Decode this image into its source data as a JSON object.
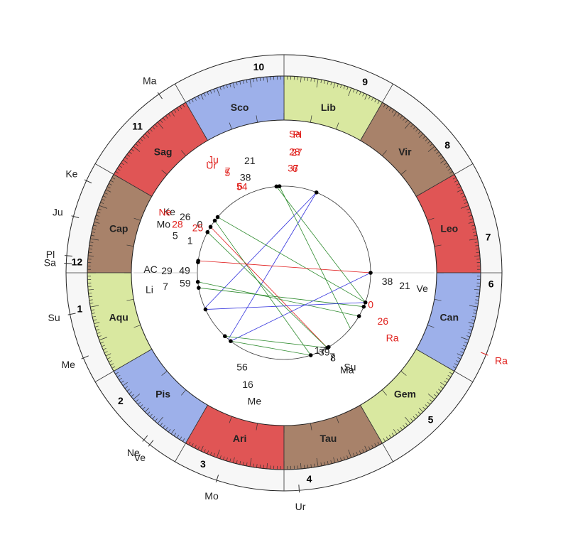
{
  "colors": {
    "red": "#e05555",
    "brown": "#a8826a",
    "green": "#d9e8a0",
    "blue": "#9db0ea",
    "outer_ring": "#f7f7f7",
    "transit_text": "#e0211d",
    "aspect_blue": "#3333dd",
    "aspect_green": "#2e8b2e",
    "aspect_red": "#e01818"
  },
  "houses": [
    {
      "num": "1",
      "angle": 190
    },
    {
      "num": "2",
      "angle": 218
    },
    {
      "num": "3",
      "angle": 247
    },
    {
      "num": "4",
      "angle": 277
    },
    {
      "num": "5",
      "angle": 315
    },
    {
      "num": "6",
      "angle": 357
    },
    {
      "num": "7",
      "angle": 10
    },
    {
      "num": "8",
      "angle": 38
    },
    {
      "num": "9",
      "angle": 67
    },
    {
      "num": "10",
      "angle": 97
    },
    {
      "num": "11",
      "angle": 135
    },
    {
      "num": "12",
      "angle": 177
    }
  ],
  "signs": [
    {
      "label": "Leo",
      "color": "red"
    },
    {
      "label": "Vir",
      "color": "brown"
    },
    {
      "label": "Lib",
      "color": "green"
    },
    {
      "label": "Sco",
      "color": "blue"
    },
    {
      "label": "Sag",
      "color": "red"
    },
    {
      "label": "Cap",
      "color": "brown"
    },
    {
      "label": "Aqu",
      "color": "green"
    },
    {
      "label": "Pis",
      "color": "blue"
    },
    {
      "label": "Ari",
      "color": "red"
    },
    {
      "label": "Tau",
      "color": "brown"
    },
    {
      "label": "Gem",
      "color": "green"
    },
    {
      "label": "Can",
      "color": "blue"
    }
  ],
  "outer_planets": [
    {
      "label": "Ma",
      "angle": 125
    },
    {
      "label": "Ke",
      "angle": 155
    },
    {
      "label": "Ju",
      "angle": 165
    },
    {
      "label": "Pl",
      "angle": 175.5
    },
    {
      "label": "Sa",
      "angle": 177.5
    },
    {
      "label": "Su",
      "angle": 191
    },
    {
      "label": "Me",
      "angle": 203
    },
    {
      "label": "Ne",
      "angle": 230
    },
    {
      "label": "Ve",
      "angle": 232
    },
    {
      "label": "Mo",
      "angle": 252
    },
    {
      "label": "Ur",
      "angle": 274
    },
    {
      "label": "Ra",
      "angle": 338
    }
  ],
  "inner_labels": [
    {
      "text": "21",
      "angle": 107,
      "r": 165,
      "red": false
    },
    {
      "text": "38",
      "angle": 112,
      "r": 145,
      "red": false
    },
    {
      "text": "Ke",
      "angle": 152,
      "r": 183,
      "red": false
    },
    {
      "text": "26",
      "angle": 150.5,
      "r": 160,
      "red": false
    },
    {
      "text": "0",
      "angle": 150,
      "r": 137,
      "red": false
    },
    {
      "text": "Mo",
      "angle": 158,
      "r": 183,
      "red": false
    },
    {
      "text": "5",
      "angle": 161,
      "r": 162,
      "red": false
    },
    {
      "text": "1",
      "angle": 161,
      "r": 140,
      "red": false
    },
    {
      "text": "AC",
      "angle": 178.5,
      "r": 188,
      "red": false
    },
    {
      "text": "29",
      "angle": 179,
      "r": 165,
      "red": false
    },
    {
      "text": "49",
      "angle": 178.5,
      "r": 140,
      "red": false
    },
    {
      "text": "Li",
      "angle": 187,
      "r": 191,
      "red": false
    },
    {
      "text": "7",
      "angle": 186.5,
      "r": 168,
      "red": false
    },
    {
      "text": "59",
      "angle": 186,
      "r": 140,
      "red": false
    },
    {
      "text": "56",
      "angle": 246,
      "r": 145,
      "red": false
    },
    {
      "text": "16",
      "angle": 252,
      "r": 165,
      "red": false
    },
    {
      "text": "Me",
      "angle": 257,
      "r": 185,
      "red": false
    },
    {
      "text": "17",
      "angle": 295,
      "r": 120,
      "red": false
    },
    {
      "text": "39",
      "angle": 297,
      "r": 125,
      "red": false
    },
    {
      "text": "7",
      "angle": 300,
      "r": 136,
      "red": false
    },
    {
      "text": "8",
      "angle": 300,
      "r": 138,
      "red": false
    },
    {
      "text": "Ma",
      "angle": 303,
      "r": 163,
      "red": false
    },
    {
      "text": "Su",
      "angle": 305,
      "r": 162,
      "red": false
    },
    {
      "text": "38",
      "angle": 355.3,
      "r": 146,
      "red": false
    },
    {
      "text": "21",
      "angle": 354,
      "r": 171,
      "red": false
    },
    {
      "text": "Ve",
      "angle": 353.5,
      "r": 196,
      "red": false
    },
    {
      "text": "Sa",
      "angle": 85.5,
      "r": 196,
      "red": true
    },
    {
      "text": "Pl",
      "angle": 84.5,
      "r": 196,
      "red": true
    },
    {
      "text": "28",
      "angle": 85,
      "r": 171,
      "red": true
    },
    {
      "text": "27",
      "angle": 84,
      "r": 171,
      "red": true
    },
    {
      "text": "37",
      "angle": 85,
      "r": 148,
      "red": true
    },
    {
      "text": "6",
      "angle": 84,
      "r": 148,
      "red": true
    },
    {
      "text": "Ju",
      "angle": 122,
      "r": 188,
      "red": true
    },
    {
      "text": "Ur",
      "angle": 124,
      "r": 183,
      "red": true
    },
    {
      "text": "7",
      "angle": 119,
      "r": 164,
      "red": true
    },
    {
      "text": "5",
      "angle": 119.5,
      "r": 162,
      "red": true
    },
    {
      "text": "6",
      "angle": 117,
      "r": 137,
      "red": true
    },
    {
      "text": "54",
      "angle": 116,
      "r": 135,
      "red": true
    },
    {
      "text": "Ne",
      "angle": 153,
      "r": 188,
      "red": true
    },
    {
      "text": "28",
      "angle": 155.5,
      "r": 165,
      "red": true
    },
    {
      "text": "25",
      "angle": 152.5,
      "r": 137,
      "red": true
    },
    {
      "text": "0",
      "angle": 340,
      "r": 130,
      "red": true
    },
    {
      "text": "26",
      "angle": 334,
      "r": 155,
      "red": true
    },
    {
      "text": "Ra",
      "angle": 329,
      "r": 178,
      "red": true
    }
  ],
  "aspect_lines": [
    {
      "a1": 68,
      "a2": 204,
      "color": "aspect_blue"
    },
    {
      "a1": 68,
      "a2": 230,
      "color": "aspect_blue"
    },
    {
      "a1": 93,
      "a2": 320,
      "color": "aspect_green"
    },
    {
      "a1": 95,
      "a2": 340,
      "color": "aspect_green"
    },
    {
      "a1": 140,
      "a2": 340,
      "color": "aspect_green"
    },
    {
      "a1": 148,
      "a2": 300,
      "color": "aspect_red"
    },
    {
      "a1": 143,
      "a2": 288,
      "color": "aspect_green"
    },
    {
      "a1": 152,
      "a2": 300,
      "color": "aspect_green"
    },
    {
      "a1": 172,
      "a2": 0,
      "color": "aspect_red"
    },
    {
      "a1": 186,
      "a2": 330,
      "color": "aspect_green"
    },
    {
      "a1": 190,
      "a2": 337,
      "color": "aspect_green"
    },
    {
      "a1": 205,
      "a2": 340,
      "color": "aspect_blue"
    },
    {
      "a1": 232,
      "a2": 0,
      "color": "aspect_blue"
    },
    {
      "a1": 232,
      "a2": 288,
      "color": "aspect_green"
    },
    {
      "a1": 227,
      "a2": 300,
      "color": "aspect_green"
    }
  ],
  "inner_dots": [
    68,
    93,
    95,
    140,
    143,
    148,
    152,
    172,
    173,
    186,
    190,
    205,
    227,
    232,
    288,
    300,
    301,
    330,
    337,
    340,
    0
  ]
}
